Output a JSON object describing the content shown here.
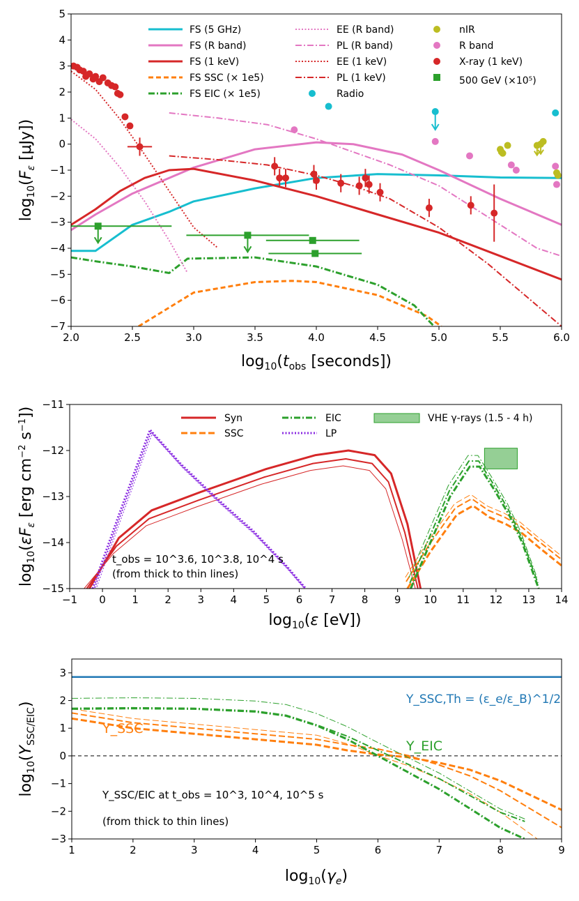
{
  "chart_data": [
    {
      "type": "line",
      "title": "",
      "xlabel": "log10(t_obs [seconds])",
      "ylabel": "log10(F_ε [μJy])",
      "xlim": [
        2.0,
        6.0
      ],
      "ylim": [
        -7,
        5
      ],
      "xticks": [
        "2.0",
        "2.5",
        "3.0",
        "3.5",
        "4.0",
        "4.5",
        "5.0",
        "5.5",
        "6.0"
      ],
      "yticks": [
        "−7",
        "−6",
        "−5",
        "−4",
        "−3",
        "−2",
        "−1",
        "0",
        "1",
        "2",
        "3",
        "4",
        "5"
      ],
      "legend": [
        "FS (5 GHz)",
        "FS (R band)",
        "FS (1 keV)",
        "FS SSC (× 1e5)",
        "FS EIC (× 1e5)",
        "EE (R band)",
        "PL (R band)",
        "EE (1 keV)",
        "PL (1 keV)",
        "Radio",
        "nIR",
        "R band",
        "X-ray (1 keV)",
        "500 GeV (×10⁵)"
      ],
      "legend_position": "top",
      "colors": {
        "cyan": "#17becf",
        "pink": "#e377c2",
        "red": "#d62728",
        "orange": "#ff7f0e",
        "green": "#2ca02c",
        "olive": "#bcbd22"
      },
      "series": [
        {
          "name": "FS (5 GHz)",
          "x": [
            2.0,
            2.2,
            2.5,
            2.8,
            3.0,
            3.5,
            4.0,
            4.5,
            5.0,
            5.5,
            6.0
          ],
          "y": [
            -4.1,
            -4.1,
            -3.1,
            -2.6,
            -2.2,
            -1.7,
            -1.3,
            -1.15,
            -1.2,
            -1.28,
            -1.3
          ]
        },
        {
          "name": "FS (R band)",
          "x": [
            2.0,
            2.2,
            2.5,
            3.0,
            3.5,
            4.0,
            4.3,
            4.7,
            5.0,
            5.5,
            6.0
          ],
          "y": [
            -3.3,
            -2.7,
            -1.9,
            -0.9,
            -0.2,
            0.07,
            0.0,
            -0.4,
            -1.0,
            -2.1,
            -3.1
          ]
        },
        {
          "name": "FS (1 keV)",
          "x": [
            2.0,
            2.2,
            2.4,
            2.6,
            2.8,
            3.0,
            3.5,
            4.0,
            4.5,
            5.0,
            5.5,
            6.0
          ],
          "y": [
            -3.1,
            -2.5,
            -1.8,
            -1.3,
            -1.0,
            -0.95,
            -1.4,
            -2.0,
            -2.7,
            -3.4,
            -4.3,
            -5.2
          ]
        },
        {
          "name": "FS SSC (× 1e5)",
          "x": [
            2.55,
            3.0,
            3.5,
            3.8,
            4.0,
            4.5,
            4.9,
            5.02
          ],
          "y": [
            -7.0,
            -5.7,
            -5.3,
            -5.25,
            -5.3,
            -5.8,
            -6.6,
            -7.0
          ]
        },
        {
          "name": "FS EIC (× 1e5)",
          "x": [
            2.0,
            2.2,
            2.5,
            2.8,
            2.95,
            3.5,
            4.0,
            4.5,
            4.8,
            4.9,
            4.96
          ],
          "y": [
            -4.35,
            -4.5,
            -4.7,
            -4.95,
            -4.4,
            -4.35,
            -4.7,
            -5.4,
            -6.2,
            -6.7,
            -7.0
          ]
        },
        {
          "name": "EE (R band)",
          "x": [
            2.0,
            2.2,
            2.4,
            2.6,
            2.8,
            2.95
          ],
          "y": [
            0.95,
            0.2,
            -0.9,
            -2.2,
            -3.7,
            -4.95
          ]
        },
        {
          "name": "PL (R band)",
          "x": [
            2.8,
            3.2,
            3.6,
            4.0,
            4.3,
            4.6,
            5.0,
            5.4,
            5.8,
            6.0
          ],
          "y": [
            1.2,
            1.0,
            0.75,
            0.2,
            -0.3,
            -0.8,
            -1.6,
            -2.8,
            -4.0,
            -4.3
          ]
        },
        {
          "name": "EE (1 keV)",
          "x": [
            2.0,
            2.2,
            2.4,
            2.6,
            2.8,
            3.0,
            3.2
          ],
          "y": [
            2.8,
            2.1,
            0.95,
            -0.4,
            -1.8,
            -3.2,
            -4.0
          ]
        },
        {
          "name": "PL (1 keV)",
          "x": [
            2.8,
            3.2,
            3.6,
            4.0,
            4.3,
            4.6,
            5.0,
            5.4,
            5.8,
            6.0
          ],
          "y": [
            -0.45,
            -0.6,
            -0.8,
            -1.2,
            -1.6,
            -2.1,
            -3.2,
            -4.6,
            -6.2,
            -7.0
          ]
        }
      ],
      "points": [
        {
          "name": "Radio",
          "x": [
            4.1,
            4.97,
            5.95
          ],
          "y": [
            1.45,
            1.25,
            1.2
          ]
        },
        {
          "name": "nIR",
          "x": [
            5.5,
            5.51,
            5.52,
            5.56,
            5.8,
            5.83,
            5.85,
            5.96,
            5.97
          ],
          "y": [
            -0.2,
            -0.3,
            -0.35,
            -0.05,
            -0.05,
            0.0,
            0.1,
            -1.1,
            -1.2
          ]
        },
        {
          "name": "R band",
          "x": [
            3.82,
            4.97,
            5.25,
            5.59,
            5.63,
            5.95,
            5.96
          ],
          "y": [
            0.55,
            0.1,
            -0.45,
            -0.8,
            -1.0,
            -0.85,
            -1.55
          ]
        },
        {
          "name": "X-ray (1 keV)",
          "x": [
            2.02,
            2.05,
            2.07,
            2.1,
            2.12,
            2.15,
            2.18,
            2.2,
            2.23,
            2.26,
            2.3,
            2.33,
            2.36,
            2.38,
            2.4,
            2.44,
            2.48,
            2.56,
            3.66,
            3.7,
            3.75,
            3.98,
            4.0,
            4.2,
            4.35,
            4.4,
            4.43,
            4.52,
            4.92,
            5.26,
            5.45
          ],
          "y": [
            3.0,
            2.95,
            2.85,
            2.8,
            2.6,
            2.7,
            2.5,
            2.6,
            2.4,
            2.55,
            2.35,
            2.25,
            2.2,
            1.95,
            1.9,
            1.05,
            0.7,
            -0.1,
            -0.85,
            -1.3,
            -1.3,
            -1.15,
            -1.4,
            -1.5,
            -1.6,
            -1.3,
            -1.55,
            -1.85,
            -2.45,
            -2.35,
            -2.65
          ]
        },
        {
          "name": "500 GeV (×10⁵)",
          "x": [
            2.22,
            3.44,
            3.97,
            3.99
          ],
          "y": [
            -3.15,
            -3.5,
            -3.7,
            -4.2
          ]
        }
      ]
    },
    {
      "type": "line",
      "title": "",
      "xlabel": "log10(ε [eV])",
      "ylabel": "log10(εF_ε [erg cm⁻² s⁻¹])",
      "xlim": [
        -1,
        14
      ],
      "ylim": [
        -15,
        -11
      ],
      "xticks": [
        "−1",
        "0",
        "1",
        "2",
        "3",
        "4",
        "5",
        "6",
        "7",
        "8",
        "9",
        "10",
        "11",
        "12",
        "13",
        "14"
      ],
      "yticks": [
        "−15",
        "−14",
        "−13",
        "−12",
        "−11"
      ],
      "legend": [
        "Syn",
        "SSC",
        "EIC",
        "LP",
        "VHE γ-rays (1.5 - 4 h)"
      ],
      "legend_position": "top",
      "annotation_line1": "t_obs = 10^3.6, 10^3.8, 10^4 s",
      "annotation_line2": "(from thick to thin lines)",
      "series": [
        {
          "name": "Syn",
          "x": [
            -0.4,
            0.5,
            1.5,
            3.0,
            5.0,
            6.5,
            7.5,
            8.3,
            8.8,
            9.3,
            9.7
          ],
          "y": [
            -15.0,
            -13.9,
            -13.3,
            -12.9,
            -12.4,
            -12.1,
            -12.0,
            -12.1,
            -12.5,
            -13.6,
            -15.0
          ]
        },
        {
          "name": "SSC",
          "x": [
            9.3,
            10.0,
            10.8,
            11.3,
            11.8,
            12.3,
            12.8,
            13.3,
            14.0
          ],
          "y": [
            -15.0,
            -14.2,
            -13.4,
            -13.2,
            -13.45,
            -13.6,
            -13.8,
            -14.1,
            -14.5
          ]
        },
        {
          "name": "EIC",
          "x": [
            9.4,
            10.0,
            10.6,
            11.2,
            11.5,
            11.9,
            12.4,
            12.8,
            13.1,
            13.3
          ],
          "y": [
            -15.0,
            -14.0,
            -13.0,
            -12.35,
            -12.35,
            -12.8,
            -13.4,
            -14.0,
            -14.6,
            -15.0
          ]
        },
        {
          "name": "LP",
          "x": [
            -0.3,
            0.5,
            1.45,
            2.4,
            3.5,
            4.6,
            5.6,
            6.2
          ],
          "y": [
            -15.0,
            -13.4,
            -11.55,
            -12.3,
            -13.05,
            -13.75,
            -14.5,
            -15.0
          ]
        }
      ],
      "band": {
        "name": "VHE γ-rays (1.5 - 4 h)",
        "x": [
          11.65,
          12.65
        ],
        "y": [
          -12.4,
          -11.95
        ]
      }
    },
    {
      "type": "line",
      "title": "",
      "xlabel": "log10(γ_e)",
      "ylabel": "log10(Y_SSC/EIC)",
      "xlim": [
        1,
        9
      ],
      "ylim": [
        -3,
        3.5
      ],
      "xticks": [
        "1",
        "2",
        "3",
        "4",
        "5",
        "6",
        "7",
        "8",
        "9"
      ],
      "yticks": [
        "−3",
        "−2",
        "−1",
        "0",
        "1",
        "2",
        "3"
      ],
      "labels": {
        "y_th": "Y_SSC,Th = (ε_e/ε_B)^1/2",
        "y_ssc": "Y_SSC",
        "y_eic": "Y_EIC"
      },
      "annotation_line1": "Y_SSC/EIC at t_obs = 10^3, 10^4, 10^5 s",
      "annotation_line2": "(from thick to thin lines)",
      "series": [
        {
          "name": "Y_SSC,Th",
          "x": [
            1,
            9
          ],
          "y": [
            2.85,
            2.85
          ]
        },
        {
          "name": "Y_SSC",
          "x": [
            1,
            2,
            3,
            4,
            5,
            5.5,
            6,
            6.5,
            7,
            7.5,
            8,
            9
          ],
          "y": [
            1.35,
            1.0,
            0.8,
            0.6,
            0.4,
            0.2,
            0.05,
            -0.05,
            -0.25,
            -0.5,
            -0.9,
            -1.95
          ]
        },
        {
          "name": "Y_EIC",
          "x": [
            1,
            2,
            3,
            4,
            4.5,
            5,
            5.5,
            6,
            6.5,
            7,
            7.5,
            8,
            8.4
          ],
          "y": [
            1.7,
            1.72,
            1.7,
            1.6,
            1.45,
            1.1,
            0.6,
            0.0,
            -0.6,
            -1.2,
            -1.9,
            -2.6,
            -3.0
          ]
        }
      ]
    }
  ]
}
